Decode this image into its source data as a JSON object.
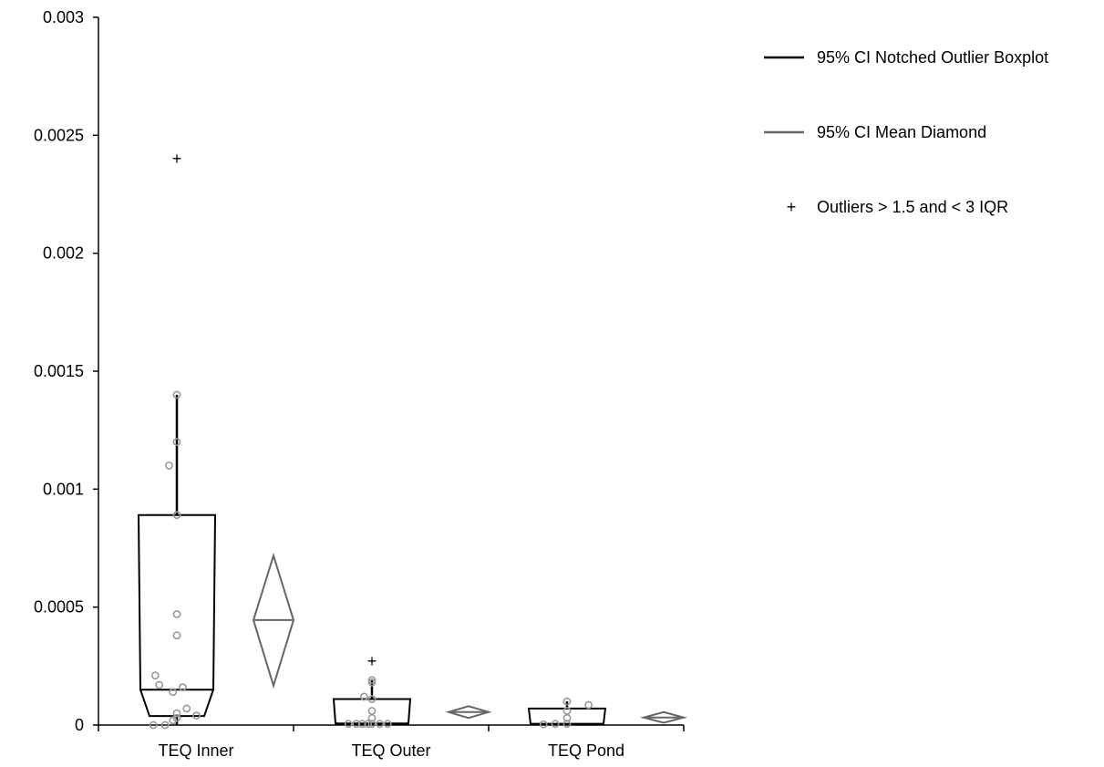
{
  "chart_data": {
    "type": "boxplot",
    "title": "",
    "xlabel": "",
    "ylabel": "",
    "ylim": [
      0,
      0.003
    ],
    "y_ticks": [
      "0",
      "0.0005",
      "0.001",
      "0.0015",
      "0.002",
      "0.0025",
      "0.003"
    ],
    "categories": [
      "TEQ Inner",
      "TEQ Outer",
      "TEQ Pond"
    ],
    "legend": {
      "position": "top-right",
      "entries": [
        {
          "label": "95% CI Notched Outlier Boxplot",
          "symbol": "line",
          "color": "#000000"
        },
        {
          "label": "95% CI Mean Diamond",
          "symbol": "line",
          "color": "#666666"
        },
        {
          "label": "Outliers > 1.5 and < 3 IQR",
          "symbol": "+",
          "color": "#000000"
        }
      ]
    },
    "colors": {
      "box": "#000000",
      "diamond": "#666666",
      "points": "#999999"
    },
    "groups": [
      {
        "name": "TEQ Inner",
        "q1": 3.8e-05,
        "median": 0.00015,
        "q3": 0.00089,
        "notch_low": 3.8e-05,
        "notch_high": 0.00015,
        "whisker_low": 0.0,
        "whisker_high": 0.0014,
        "outliers": [
          0.0024
        ],
        "mean": 0.000445,
        "mean_ci": [
          0.000167,
          0.000718
        ],
        "points": [
          {
            "x": -0.12,
            "y": 0.0
          },
          {
            "x": -0.06,
            "y": 0.0
          },
          {
            "x": -0.02,
            "y": 2e-05
          },
          {
            "x": 0.0,
            "y": 3e-05
          },
          {
            "x": 0.0,
            "y": 5e-05
          },
          {
            "x": 0.03,
            "y": 0.00016
          },
          {
            "x": 0.05,
            "y": 7e-05
          },
          {
            "x": 0.1,
            "y": 4e-05
          },
          {
            "x": -0.02,
            "y": 0.00014
          },
          {
            "x": -0.09,
            "y": 0.00017
          },
          {
            "x": -0.11,
            "y": 0.00021
          },
          {
            "x": 0.0,
            "y": 0.00038
          },
          {
            "x": 0.0,
            "y": 0.00047
          },
          {
            "x": 0.0,
            "y": 0.00089
          },
          {
            "x": -0.04,
            "y": 0.0011
          },
          {
            "x": 0.0,
            "y": 0.0012
          },
          {
            "x": 0.0,
            "y": 0.0014
          }
        ]
      },
      {
        "name": "TEQ Outer",
        "q1": 2e-06,
        "median": 7e-06,
        "q3": 0.00011,
        "notch_low": 2e-06,
        "notch_high": 7e-06,
        "whisker_low": 0.0,
        "whisker_high": 0.00019,
        "outliers": [
          0.00027
        ],
        "mean": 5.5e-05,
        "mean_ci": [
          3e-05,
          8e-05
        ],
        "points": [
          {
            "x": -0.12,
            "y": 5e-06
          },
          {
            "x": -0.08,
            "y": 5e-06
          },
          {
            "x": -0.05,
            "y": 5e-06
          },
          {
            "x": -0.02,
            "y": 5e-06
          },
          {
            "x": 0.0,
            "y": 5e-06
          },
          {
            "x": 0.04,
            "y": 5e-06
          },
          {
            "x": 0.08,
            "y": 5e-06
          },
          {
            "x": -0.04,
            "y": 0.00012
          },
          {
            "x": 0.0,
            "y": 3e-05
          },
          {
            "x": 0.0,
            "y": 6e-05
          },
          {
            "x": 0.0,
            "y": 0.00011
          },
          {
            "x": 0.0,
            "y": 0.00018
          },
          {
            "x": 0.0,
            "y": 0.00019
          }
        ]
      },
      {
        "name": "TEQ Pond",
        "q1": 5e-06,
        "median": 5e-06,
        "q3": 7e-05,
        "notch_low": 5e-06,
        "notch_high": 5e-06,
        "whisker_low": 0.0,
        "whisker_high": 0.0001,
        "outliers": [],
        "mean": 3.2e-05,
        "mean_ci": [
          1e-05,
          5.5e-05
        ],
        "points": [
          {
            "x": -0.12,
            "y": 3e-06
          },
          {
            "x": -0.06,
            "y": 5e-06
          },
          {
            "x": 0.0,
            "y": 5e-06
          },
          {
            "x": 0.0,
            "y": 3e-05
          },
          {
            "x": 0.0,
            "y": 6e-05
          },
          {
            "x": 0.0,
            "y": 0.0001
          },
          {
            "x": 0.11,
            "y": 8.5e-05
          }
        ]
      }
    ]
  }
}
